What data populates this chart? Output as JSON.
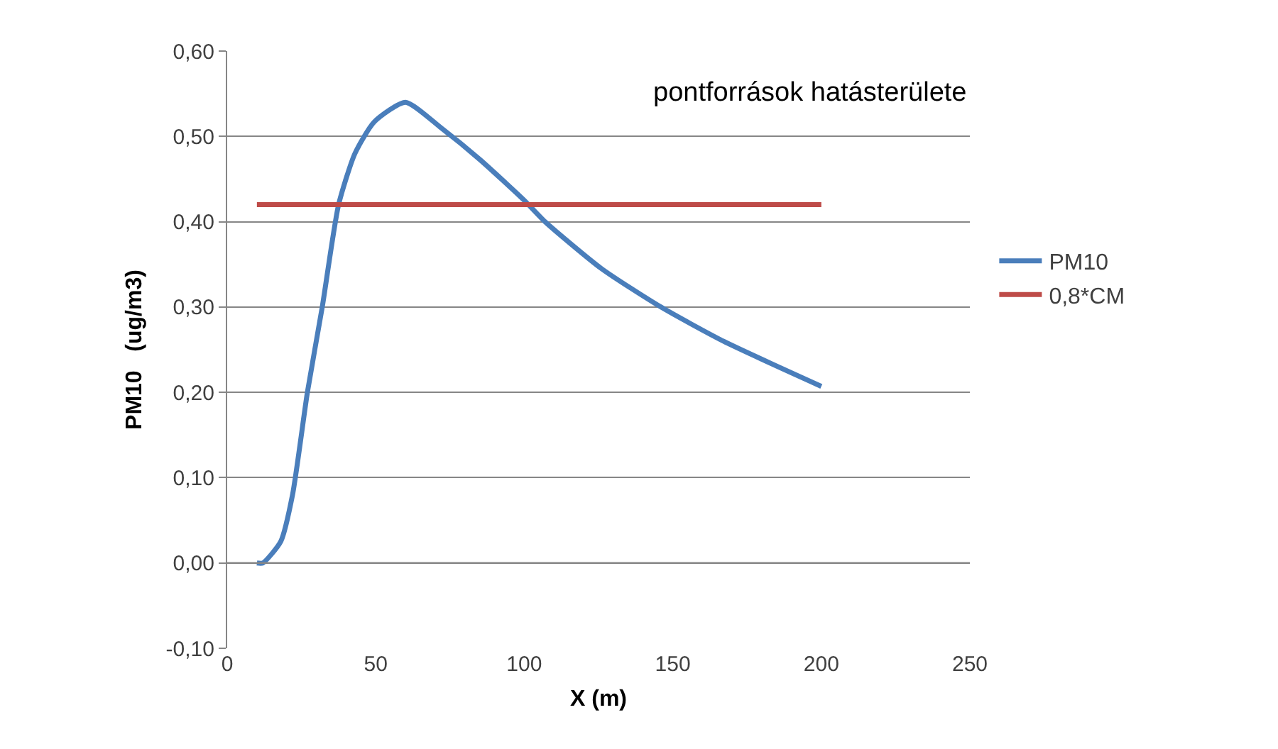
{
  "chart_data": {
    "type": "line",
    "xlabel": "X (m)",
    "ylabel": "PM10   (ug/m3)",
    "annotations": [
      "pontforrások hatásterülete"
    ],
    "series": [
      {
        "name": "PM10",
        "color": "#4a7ebb",
        "x": [
          10,
          12,
          18,
          22,
          27,
          32,
          37.5,
          43,
          49.5,
          60,
          72,
          85,
          100,
          107,
          126,
          146,
          167,
          200
        ],
        "values": [
          0,
          0,
          0.025,
          0.08,
          0.2,
          0.3,
          0.42,
          0.48,
          0.517,
          0.54,
          0.51,
          0.473,
          0.425,
          0.4,
          0.345,
          0.3,
          0.26,
          0.207
        ]
      },
      {
        "name": "0,8*CM",
        "color": "#be4b48",
        "x": [
          10,
          200
        ],
        "values": [
          0.42,
          0.42
        ]
      }
    ],
    "xlim": [
      0,
      250
    ],
    "xticks": [
      0,
      50,
      100,
      150,
      200,
      250
    ],
    "ylim": [
      -0.1,
      0.6
    ],
    "yticks": [
      {
        "value": -0.1,
        "label": "-0,10"
      },
      {
        "value": 0,
        "label": "0,00"
      },
      {
        "value": 0.1,
        "label": "0,10"
      },
      {
        "value": 0.2,
        "label": "0,20"
      },
      {
        "value": 0.3,
        "label": "0,30"
      },
      {
        "value": 0.4,
        "label": "0,40"
      },
      {
        "value": 0.5,
        "label": "0,50"
      },
      {
        "value": 0.6,
        "label": "0,60"
      }
    ],
    "grid": "y",
    "legend": "right",
    "marker": "none",
    "line_style": "solid"
  }
}
